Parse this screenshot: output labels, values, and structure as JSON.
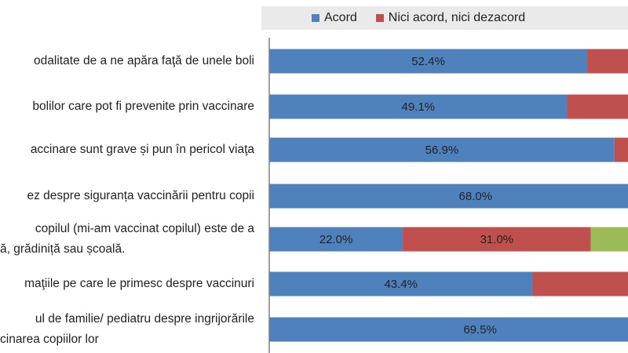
{
  "legend": {
    "acord": "Acord",
    "neutru": "Nici acord, nici dezacord"
  },
  "colors": {
    "acord": "#4f81bd",
    "neutru": "#c0504d",
    "dezacord": "#9bbb59",
    "legend_bg": "#eaeaea",
    "axis": "#7f7f7f"
  },
  "chart_data": {
    "type": "bar",
    "orientation": "horizontal",
    "stacked": true,
    "categories": [
      [
        "odalitate de a ne apăra faţă de unele boli"
      ],
      [
        "bolilor care pot fi prevenite prin vaccinare"
      ],
      [
        "accinare sunt grave și pun în pericol viaţa"
      ],
      [
        "ez despre siguranța vaccinării pentru copii"
      ],
      [
        "copilul (mi-am vaccinat copilul) este  de a",
        "ă, grădiniță sau școală."
      ],
      [
        "maţiile pe care le primesc despre vaccinuri"
      ],
      [
        "ul de familie/ pediatru despre ingrijorările",
        "cinarea copiilor lor"
      ]
    ],
    "series": [
      {
        "name": "Acord",
        "values": [
          52.4,
          49.1,
          56.9,
          68.0,
          22.0,
          43.4,
          69.5
        ]
      },
      {
        "name": "Nici acord, nici dezacord",
        "values": [
          null,
          null,
          null,
          null,
          31.0,
          null,
          null
        ]
      }
    ],
    "data_labels": {
      "acord": [
        "52.4%",
        "49.1%",
        "56.9%",
        "68.0%",
        "22.0%",
        "43.4%",
        "69.5%"
      ],
      "neutru": [
        null,
        null,
        null,
        null,
        "31.0%",
        null,
        null
      ]
    },
    "third_segment_visible_rows": [
      4
    ],
    "xlim": [
      0,
      100
    ],
    "legend_position": "top"
  }
}
